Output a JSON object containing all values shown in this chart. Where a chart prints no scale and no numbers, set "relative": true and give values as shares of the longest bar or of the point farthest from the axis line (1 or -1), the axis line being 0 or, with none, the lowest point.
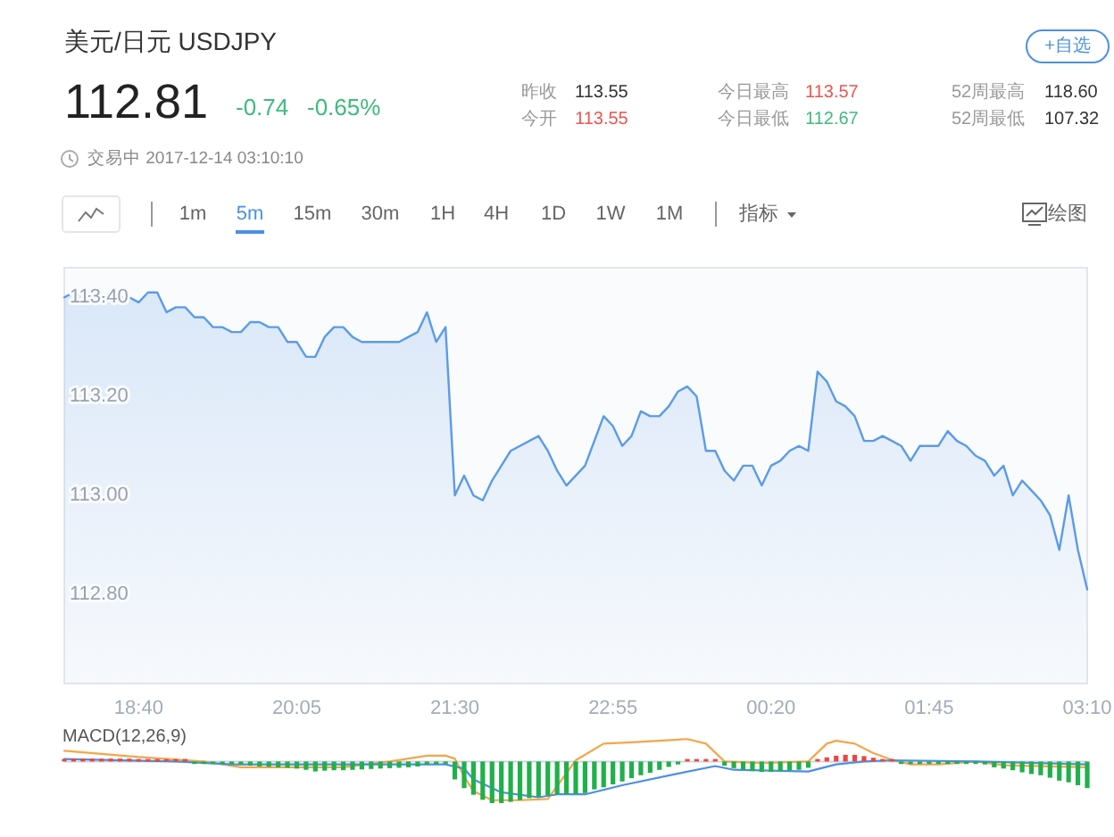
{
  "chart_data": [
    {
      "type": "other",
      "title": "美元/日元 USDJPY",
      "annotations": [
        "112.81",
        "-0.74",
        "-0.65%",
        "昨收",
        "113.55",
        "今开",
        "113.55",
        "今日最高",
        "113.57",
        "今日最低",
        "112.67",
        "52周最高",
        "118.60",
        "52周最低",
        "107.32",
        "交易中 2017-12-14 03:10:10",
        "+自选",
        "1m",
        "5m",
        "15m",
        "30m",
        "1H",
        "4H",
        "1D",
        "1W",
        "1M",
        "指标",
        "绘图"
      ]
    },
    {
      "type": "area",
      "color": "#5b9be6",
      "x": [
        "2017-12-13T18:00",
        "2017-12-13T18:05",
        "2017-12-13T18:15",
        "2017-12-13T18:25",
        "2017-12-13T18:35",
        "2017-12-13T18:40",
        "2017-12-13T18:45",
        "2017-12-13T18:50",
        "2017-12-13T18:55",
        "2017-12-13T19:00",
        "2017-12-13T19:05",
        "2017-12-13T19:10",
        "2017-12-13T19:15",
        "2017-12-13T19:20",
        "2017-12-13T19:25",
        "2017-12-13T19:30",
        "2017-12-13T19:35",
        "2017-12-13T19:40",
        "2017-12-13T19:45",
        "2017-12-13T19:50",
        "2017-12-13T19:55",
        "2017-12-13T20:00",
        "2017-12-13T20:05",
        "2017-12-13T20:10",
        "2017-12-13T20:15",
        "2017-12-13T20:20",
        "2017-12-13T20:25",
        "2017-12-13T20:30",
        "2017-12-13T20:35",
        "2017-12-13T20:40",
        "2017-12-13T21:00",
        "2017-12-13T21:05",
        "2017-12-13T21:10",
        "2017-12-13T21:15",
        "2017-12-13T21:20",
        "2017-12-13T21:25",
        "2017-12-13T21:30",
        "2017-12-13T21:35",
        "2017-12-13T21:40",
        "2017-12-13T21:45",
        "2017-12-13T21:50",
        "2017-12-13T21:55",
        "2017-12-13T22:00",
        "2017-12-13T22:05",
        "2017-12-13T22:15",
        "2017-12-13T22:20",
        "2017-12-13T22:25",
        "2017-12-13T22:30",
        "2017-12-13T22:40",
        "2017-12-13T22:50",
        "2017-12-13T22:55",
        "2017-12-13T23:00",
        "2017-12-13T23:05",
        "2017-12-13T23:10",
        "2017-12-13T23:15",
        "2017-12-13T23:20",
        "2017-12-13T23:25",
        "2017-12-13T23:30",
        "2017-12-13T23:35",
        "2017-12-13T23:40",
        "2017-12-13T23:45",
        "2017-12-13T23:50",
        "2017-12-13T23:55",
        "2017-12-14T00:00",
        "2017-12-14T00:05",
        "2017-12-14T00:10",
        "2017-12-14T00:15",
        "2017-12-14T00:20",
        "2017-12-14T00:25",
        "2017-12-14T00:30",
        "2017-12-14T00:35",
        "2017-12-14T00:40",
        "2017-12-14T00:45",
        "2017-12-14T00:50",
        "2017-12-14T00:55",
        "2017-12-14T01:00",
        "2017-12-14T01:05",
        "2017-12-14T01:10",
        "2017-12-14T01:15",
        "2017-12-14T01:20",
        "2017-12-14T01:25",
        "2017-12-14T01:30",
        "2017-12-14T01:35",
        "2017-12-14T01:40",
        "2017-12-14T01:45",
        "2017-12-14T01:50",
        "2017-12-14T01:55",
        "2017-12-14T02:00",
        "2017-12-14T02:05",
        "2017-12-14T02:10",
        "2017-12-14T02:15",
        "2017-12-14T02:20",
        "2017-12-14T02:25",
        "2017-12-14T02:30",
        "2017-12-14T02:35",
        "2017-12-14T02:40",
        "2017-12-14T02:45",
        "2017-12-14T02:50",
        "2017-12-14T02:55",
        "2017-12-14T03:00",
        "2017-12-14T03:05",
        "2017-12-14T03:10"
      ],
      "values": [
        113.4,
        113.41,
        113.4,
        113.4,
        113.4,
        113.39,
        113.41,
        113.41,
        113.37,
        113.38,
        113.38,
        113.36,
        113.36,
        113.34,
        113.34,
        113.33,
        113.33,
        113.35,
        113.35,
        113.34,
        113.34,
        113.31,
        113.31,
        113.28,
        113.28,
        113.32,
        113.34,
        113.34,
        113.32,
        113.31,
        113.31,
        113.32,
        113.33,
        113.37,
        113.31,
        113.34,
        113.0,
        113.04,
        113.0,
        112.99,
        113.03,
        113.06,
        113.09,
        113.1,
        113.12,
        113.09,
        113.05,
        113.02,
        113.06,
        113.16,
        113.14,
        113.1,
        113.12,
        113.17,
        113.16,
        113.16,
        113.18,
        113.21,
        113.22,
        113.2,
        113.09,
        113.09,
        113.05,
        113.03,
        113.06,
        113.06,
        113.02,
        113.06,
        113.07,
        113.09,
        113.1,
        113.09,
        113.25,
        113.23,
        113.19,
        113.18,
        113.16,
        113.11,
        113.11,
        113.12,
        113.11,
        113.1,
        113.07,
        113.1,
        113.1,
        113.1,
        113.13,
        113.11,
        113.1,
        113.08,
        113.07,
        113.04,
        113.06,
        113.0,
        113.03,
        113.01,
        112.99,
        112.96,
        112.89,
        113.0,
        112.89,
        112.81
      ],
      "xlim": [
        "2017-12-13T18:00",
        "2017-12-14T03:10"
      ],
      "ylim": [
        112.62,
        113.46
      ],
      "xticks": [
        {
          "value": "2017-12-13T18:40",
          "label": "18:40"
        },
        {
          "value": "2017-12-13T20:05",
          "label": "20:05"
        },
        {
          "value": "2017-12-13T21:30",
          "label": "21:30"
        },
        {
          "value": "2017-12-13T22:55",
          "label": "22:55"
        },
        {
          "value": "2017-12-14T00:20",
          "label": "00:20"
        },
        {
          "value": "2017-12-14T01:45",
          "label": "01:45"
        },
        {
          "value": "2017-12-14T03:10",
          "label": "03:10"
        }
      ],
      "yticks": [
        {
          "value": 113.4,
          "label": "113.40"
        },
        {
          "value": 113.2,
          "label": "113.20"
        },
        {
          "value": 113.0,
          "label": "113.00"
        },
        {
          "value": 112.8,
          "label": "112.80"
        }
      ]
    },
    {
      "type": "bar",
      "title": "MACD(12,26,9)",
      "relative": true,
      "xlim": [
        "2017-12-13T18:00",
        "2017-12-14T03:10"
      ],
      "series": [
        {
          "type": "bar",
          "x": [
            "2017-12-13T18:00",
            "2017-12-13T18:05",
            "2017-12-13T18:10",
            "2017-12-13T18:15",
            "2017-12-13T18:20",
            "2017-12-13T18:25",
            "2017-12-13T18:30",
            "2017-12-13T18:35",
            "2017-12-13T18:40",
            "2017-12-13T18:45",
            "2017-12-13T18:50",
            "2017-12-13T18:55",
            "2017-12-13T19:00",
            "2017-12-13T19:05",
            "2017-12-13T19:10",
            "2017-12-13T19:15",
            "2017-12-13T19:20",
            "2017-12-13T19:25",
            "2017-12-13T19:30",
            "2017-12-13T19:35",
            "2017-12-13T19:40",
            "2017-12-13T19:45",
            "2017-12-13T19:50",
            "2017-12-13T19:55",
            "2017-12-13T20:00",
            "2017-12-13T20:05",
            "2017-12-13T20:10",
            "2017-12-13T20:15",
            "2017-12-13T20:20",
            "2017-12-13T20:25",
            "2017-12-13T20:30",
            "2017-12-13T20:35",
            "2017-12-13T20:40",
            "2017-12-13T20:45",
            "2017-12-13T20:50",
            "2017-12-13T20:55",
            "2017-12-13T21:00",
            "2017-12-13T21:05",
            "2017-12-13T21:10",
            "2017-12-13T21:15",
            "2017-12-13T21:20",
            "2017-12-13T21:25",
            "2017-12-13T21:30",
            "2017-12-13T21:35",
            "2017-12-13T21:40",
            "2017-12-13T21:45",
            "2017-12-13T21:50",
            "2017-12-13T21:55",
            "2017-12-13T22:00",
            "2017-12-13T22:05",
            "2017-12-13T22:10",
            "2017-12-13T22:15",
            "2017-12-13T22:20",
            "2017-12-13T22:25",
            "2017-12-13T22:30",
            "2017-12-13T22:35",
            "2017-12-13T22:40",
            "2017-12-13T22:45",
            "2017-12-13T22:50",
            "2017-12-13T22:55",
            "2017-12-13T23:00",
            "2017-12-13T23:05",
            "2017-12-13T23:10",
            "2017-12-13T23:15",
            "2017-12-13T23:20",
            "2017-12-13T23:25",
            "2017-12-13T23:30",
            "2017-12-13T23:35",
            "2017-12-13T23:40",
            "2017-12-13T23:45",
            "2017-12-13T23:50",
            "2017-12-13T23:55",
            "2017-12-14T00:00",
            "2017-12-14T00:05",
            "2017-12-14T00:10",
            "2017-12-14T00:15",
            "2017-12-14T00:20",
            "2017-12-14T00:25",
            "2017-12-14T00:30",
            "2017-12-14T00:35",
            "2017-12-14T00:40",
            "2017-12-14T00:45",
            "2017-12-14T00:50",
            "2017-12-14T00:55",
            "2017-12-14T01:00",
            "2017-12-14T01:05",
            "2017-12-14T01:10",
            "2017-12-14T01:15",
            "2017-12-14T01:20",
            "2017-12-14T01:25",
            "2017-12-14T01:30",
            "2017-12-14T01:35",
            "2017-12-14T01:40",
            "2017-12-14T01:45",
            "2017-12-14T01:50",
            "2017-12-14T01:55",
            "2017-12-14T02:00",
            "2017-12-14T02:05",
            "2017-12-14T02:10",
            "2017-12-14T02:15",
            "2017-12-14T02:20",
            "2017-12-14T02:25",
            "2017-12-14T02:30",
            "2017-12-14T02:35",
            "2017-12-14T02:40",
            "2017-12-14T02:45",
            "2017-12-14T02:50",
            "2017-12-14T02:55",
            "2017-12-14T03:00",
            "2017-12-14T03:05",
            "2017-12-14T03:10"
          ],
          "values": [
            0.06,
            0.07,
            0.07,
            0.07,
            0.07,
            0.07,
            0.07,
            0.07,
            0.06,
            0.06,
            0.06,
            0.05,
            0.04,
            0.02,
            -0.02,
            -0.04,
            -0.05,
            -0.06,
            -0.07,
            -0.08,
            -0.1,
            -0.12,
            -0.13,
            -0.14,
            -0.15,
            -0.17,
            -0.2,
            -0.24,
            -0.22,
            -0.21,
            -0.21,
            -0.2,
            -0.19,
            -0.18,
            -0.17,
            -0.16,
            -0.15,
            -0.14,
            -0.12,
            -0.08,
            -0.07,
            -0.04,
            -0.43,
            -0.64,
            -0.8,
            -0.92,
            -1.0,
            -1.0,
            -0.97,
            -0.93,
            -0.88,
            -0.85,
            -0.82,
            -0.79,
            -0.79,
            -0.78,
            -0.76,
            -0.67,
            -0.62,
            -0.55,
            -0.48,
            -0.4,
            -0.33,
            -0.27,
            -0.2,
            -0.13,
            -0.07,
            0.03,
            0.05,
            0.06,
            0.02,
            -0.1,
            -0.16,
            -0.2,
            -0.23,
            -0.25,
            -0.25,
            -0.23,
            -0.22,
            -0.2,
            -0.15,
            0.06,
            0.1,
            0.14,
            0.16,
            0.16,
            0.13,
            0.09,
            0.04,
            0.02,
            -0.02,
            -0.03,
            -0.03,
            -0.03,
            -0.02,
            -0.02,
            -0.02,
            -0.03,
            -0.04,
            -0.07,
            -0.14,
            -0.17,
            -0.21,
            -0.26,
            -0.3,
            -0.33,
            -0.39,
            -0.46,
            -0.5,
            -0.57,
            -0.64
          ],
          "colors": [
            "#e8483f",
            "#e8483f",
            "#e8483f",
            "#e8483f",
            "#e8483f",
            "#e8483f",
            "#e8483f",
            "#e8483f",
            "#e8483f",
            "#e8483f",
            "#e8483f",
            "#e8483f",
            "#e8483f",
            "#e8483f",
            "#20b04b",
            "#20b04b",
            "#20b04b",
            "#20b04b",
            "#20b04b",
            "#20b04b",
            "#20b04b",
            "#20b04b",
            "#20b04b",
            "#20b04b",
            "#20b04b",
            "#20b04b",
            "#20b04b",
            "#20b04b",
            "#20b04b",
            "#20b04b",
            "#20b04b",
            "#20b04b",
            "#20b04b",
            "#20b04b",
            "#20b04b",
            "#20b04b",
            "#20b04b",
            "#20b04b",
            "#20b04b",
            "#20b04b",
            "#20b04b",
            "#20b04b",
            "#20b04b",
            "#20b04b",
            "#20b04b",
            "#20b04b",
            "#20b04b",
            "#20b04b",
            "#20b04b",
            "#20b04b",
            "#20b04b",
            "#20b04b",
            "#20b04b",
            "#20b04b",
            "#20b04b",
            "#20b04b",
            "#20b04b",
            "#20b04b",
            "#20b04b",
            "#20b04b",
            "#20b04b",
            "#20b04b",
            "#20b04b",
            "#20b04b",
            "#20b04b",
            "#20b04b",
            "#20b04b",
            "#e8483f",
            "#e8483f",
            "#e8483f",
            "#e8483f",
            "#20b04b",
            "#20b04b",
            "#20b04b",
            "#20b04b",
            "#20b04b",
            "#20b04b",
            "#20b04b",
            "#20b04b",
            "#20b04b",
            "#20b04b",
            "#e8483f",
            "#e8483f",
            "#e8483f",
            "#e8483f",
            "#e8483f",
            "#e8483f",
            "#e8483f",
            "#e8483f",
            "#e8483f",
            "#20b04b",
            "#20b04b",
            "#20b04b",
            "#20b04b",
            "#20b04b",
            "#20b04b",
            "#20b04b",
            "#20b04b",
            "#20b04b",
            "#20b04b",
            "#20b04b",
            "#20b04b",
            "#20b04b",
            "#20b04b",
            "#20b04b",
            "#20b04b",
            "#20b04b",
            "#20b04b",
            "#20b04b",
            "#20b04b",
            "#20b04b"
          ]
        },
        {
          "type": "line",
          "color": "#f5a54a",
          "x": [
            "2017-12-13T18:00",
            "2017-12-13T18:40",
            "2017-12-13T19:15",
            "2017-12-13T19:35",
            "2017-12-13T20:30",
            "2017-12-13T20:55",
            "2017-12-13T21:15",
            "2017-12-13T21:25",
            "2017-12-13T21:30",
            "2017-12-13T21:35",
            "2017-12-13T21:40",
            "2017-12-13T21:50",
            "2017-12-13T22:05",
            "2017-12-13T22:20",
            "2017-12-13T22:35",
            "2017-12-13T22:50",
            "2017-12-13T23:05",
            "2017-12-13T23:20",
            "2017-12-13T23:35",
            "2017-12-13T23:45",
            "2017-12-13T23:55",
            "2017-12-14T00:15",
            "2017-12-14T00:40",
            "2017-12-14T00:50",
            "2017-12-14T00:55",
            "2017-12-14T01:05",
            "2017-12-14T01:15",
            "2017-12-14T01:25",
            "2017-12-14T01:35",
            "2017-12-14T01:50",
            "2017-12-14T02:10",
            "2017-12-14T02:25",
            "2017-12-14T03:10"
          ],
          "values": [
            0.26,
            0.11,
            0,
            -0.14,
            -0.14,
            0,
            0.14,
            0.14,
            0.07,
            -0.36,
            -0.71,
            -0.93,
            -0.93,
            -0.9,
            0.03,
            0.43,
            0.46,
            0.5,
            0.54,
            0.43,
            0,
            -0.04,
            0,
            0.43,
            0.5,
            0.43,
            0.2,
            0.04,
            -0.07,
            -0.07,
            0,
            -0.09,
            -0.14
          ]
        },
        {
          "type": "line",
          "color": "#4a90e2",
          "x": [
            "2017-12-13T18:00",
            "2017-12-13T19:00",
            "2017-12-13T19:30",
            "2017-12-13T21:25",
            "2017-12-13T21:35",
            "2017-12-13T21:40",
            "2017-12-13T21:55",
            "2017-12-13T22:15",
            "2017-12-13T22:25",
            "2017-12-13T22:40",
            "2017-12-13T23:00",
            "2017-12-13T23:30",
            "2017-12-13T23:50",
            "2017-12-14T00:00",
            "2017-12-14T00:40",
            "2017-12-14T00:55",
            "2017-12-14T01:10",
            "2017-12-14T01:25",
            "2017-12-14T02:10",
            "2017-12-14T03:10"
          ],
          "values": [
            0.06,
            0,
            -0.07,
            -0.07,
            -0.17,
            -0.43,
            -0.74,
            -0.86,
            -0.79,
            -0.79,
            -0.57,
            -0.29,
            -0.11,
            -0.2,
            -0.24,
            -0.07,
            0,
            0.03,
            0,
            -0.07
          ]
        }
      ]
    }
  ]
}
